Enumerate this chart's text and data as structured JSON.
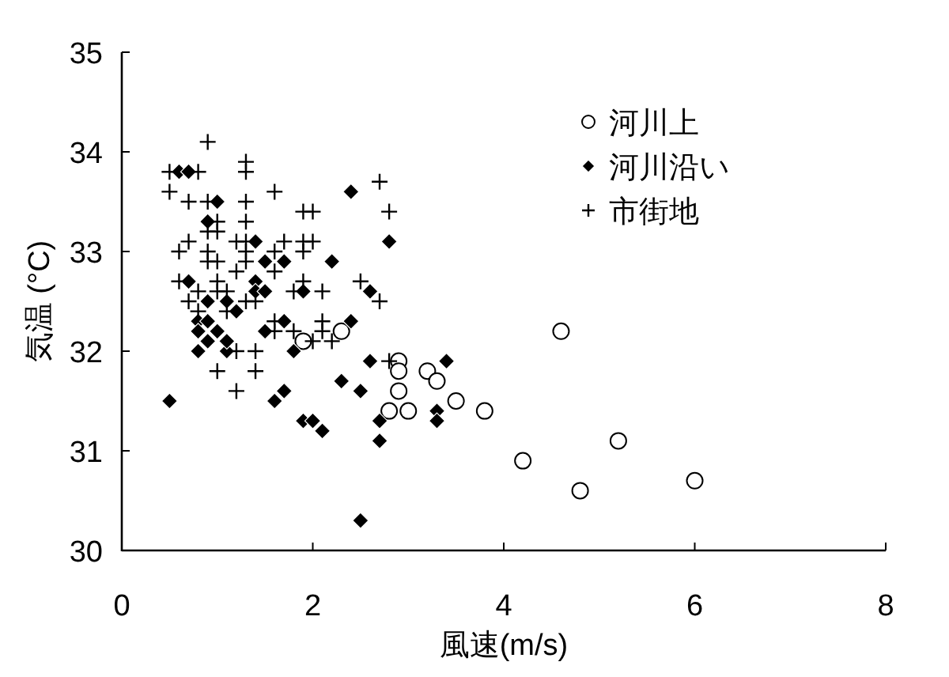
{
  "chart_data": {
    "type": "scatter",
    "xlabel": "風速(m/s)",
    "ylabel": "気温 (°C)",
    "xlim": [
      0,
      8
    ],
    "ylim": [
      30,
      35
    ],
    "xticks": [
      0,
      2,
      4,
      6,
      8
    ],
    "yticks": [
      30,
      31,
      32,
      33,
      34,
      35
    ],
    "grid": false,
    "legend": "top right",
    "series": [
      {
        "name": "河川上",
        "color": "#000000",
        "marker": "circle",
        "x": [
          4.6,
          2.9,
          2.9,
          3.2,
          3.3,
          2.9,
          2.8,
          3.0,
          3.5,
          3.8,
          4.2,
          4.8,
          5.2,
          6.0,
          2.3,
          1.9
        ],
        "values": [
          32.2,
          31.9,
          31.8,
          31.8,
          31.7,
          31.6,
          31.4,
          31.4,
          31.5,
          31.4,
          30.9,
          30.6,
          31.1,
          30.7,
          32.2,
          32.1
        ]
      },
      {
        "name": "河川沿い",
        "color": "#000000",
        "marker": "diamond",
        "x": [
          0.5,
          0.6,
          0.7,
          1.0,
          0.9,
          0.7,
          1.4,
          1.5,
          1.7,
          1.4,
          1.4,
          1.5,
          1.9,
          2.2,
          2.4,
          2.8,
          2.6,
          0.9,
          1.1,
          1.2,
          0.8,
          0.9,
          0.8,
          1.0,
          0.9,
          0.8,
          1.1,
          1.1,
          1.7,
          1.5,
          2.4,
          1.8,
          2.6,
          3.4,
          2.3,
          2.5,
          1.7,
          1.6,
          1.9,
          2.0,
          2.1,
          2.7,
          2.7,
          3.3,
          3.3,
          2.5
        ],
        "values": [
          31.5,
          33.8,
          33.8,
          33.5,
          33.3,
          32.7,
          33.1,
          32.9,
          32.9,
          32.7,
          32.6,
          32.6,
          32.6,
          32.9,
          33.6,
          33.1,
          32.6,
          32.5,
          32.5,
          32.4,
          32.3,
          32.3,
          32.2,
          32.2,
          32.1,
          32.0,
          32.0,
          32.1,
          32.3,
          32.2,
          32.3,
          32.0,
          31.9,
          31.9,
          31.7,
          31.6,
          31.6,
          31.5,
          31.3,
          31.3,
          31.2,
          31.3,
          31.1,
          31.4,
          31.3,
          30.3
        ]
      },
      {
        "name": "市街地",
        "color": "#000000",
        "marker": "cross",
        "x": [
          0.9,
          0.5,
          0.8,
          1.3,
          1.3,
          0.5,
          1.6,
          2.7,
          0.7,
          0.9,
          1.3,
          2.8,
          1.9,
          2.0,
          1.3,
          1.0,
          0.9,
          1.0,
          0.7,
          1.2,
          1.3,
          1.7,
          1.9,
          2.0,
          0.6,
          0.9,
          1.3,
          1.6,
          1.9,
          0.9,
          1.0,
          1.3,
          1.2,
          1.6,
          0.6,
          1.0,
          1.9,
          2.5,
          0.8,
          1.0,
          1.1,
          1.8,
          2.1,
          0.7,
          1.3,
          1.4,
          2.7,
          0.8,
          1.1,
          1.6,
          2.1,
          1.6,
          1.8,
          2.1,
          2.2,
          2.0,
          1.2,
          1.4,
          2.8,
          1.0,
          1.4,
          1.2
        ],
        "values": [
          34.1,
          33.8,
          33.8,
          33.9,
          33.8,
          33.6,
          33.6,
          33.7,
          33.5,
          33.5,
          33.5,
          33.4,
          33.4,
          33.4,
          33.3,
          33.3,
          33.2,
          33.2,
          33.1,
          33.1,
          33.1,
          33.1,
          33.1,
          33.1,
          33.0,
          33.0,
          33.0,
          33.0,
          33.0,
          32.9,
          32.9,
          32.9,
          32.8,
          32.8,
          32.7,
          32.7,
          32.7,
          32.7,
          32.6,
          32.6,
          32.6,
          32.6,
          32.6,
          32.5,
          32.5,
          32.5,
          32.5,
          32.4,
          32.4,
          32.3,
          32.3,
          32.2,
          32.2,
          32.2,
          32.1,
          32.1,
          32.0,
          32.0,
          31.9,
          31.8,
          31.8,
          31.6
        ]
      }
    ]
  }
}
